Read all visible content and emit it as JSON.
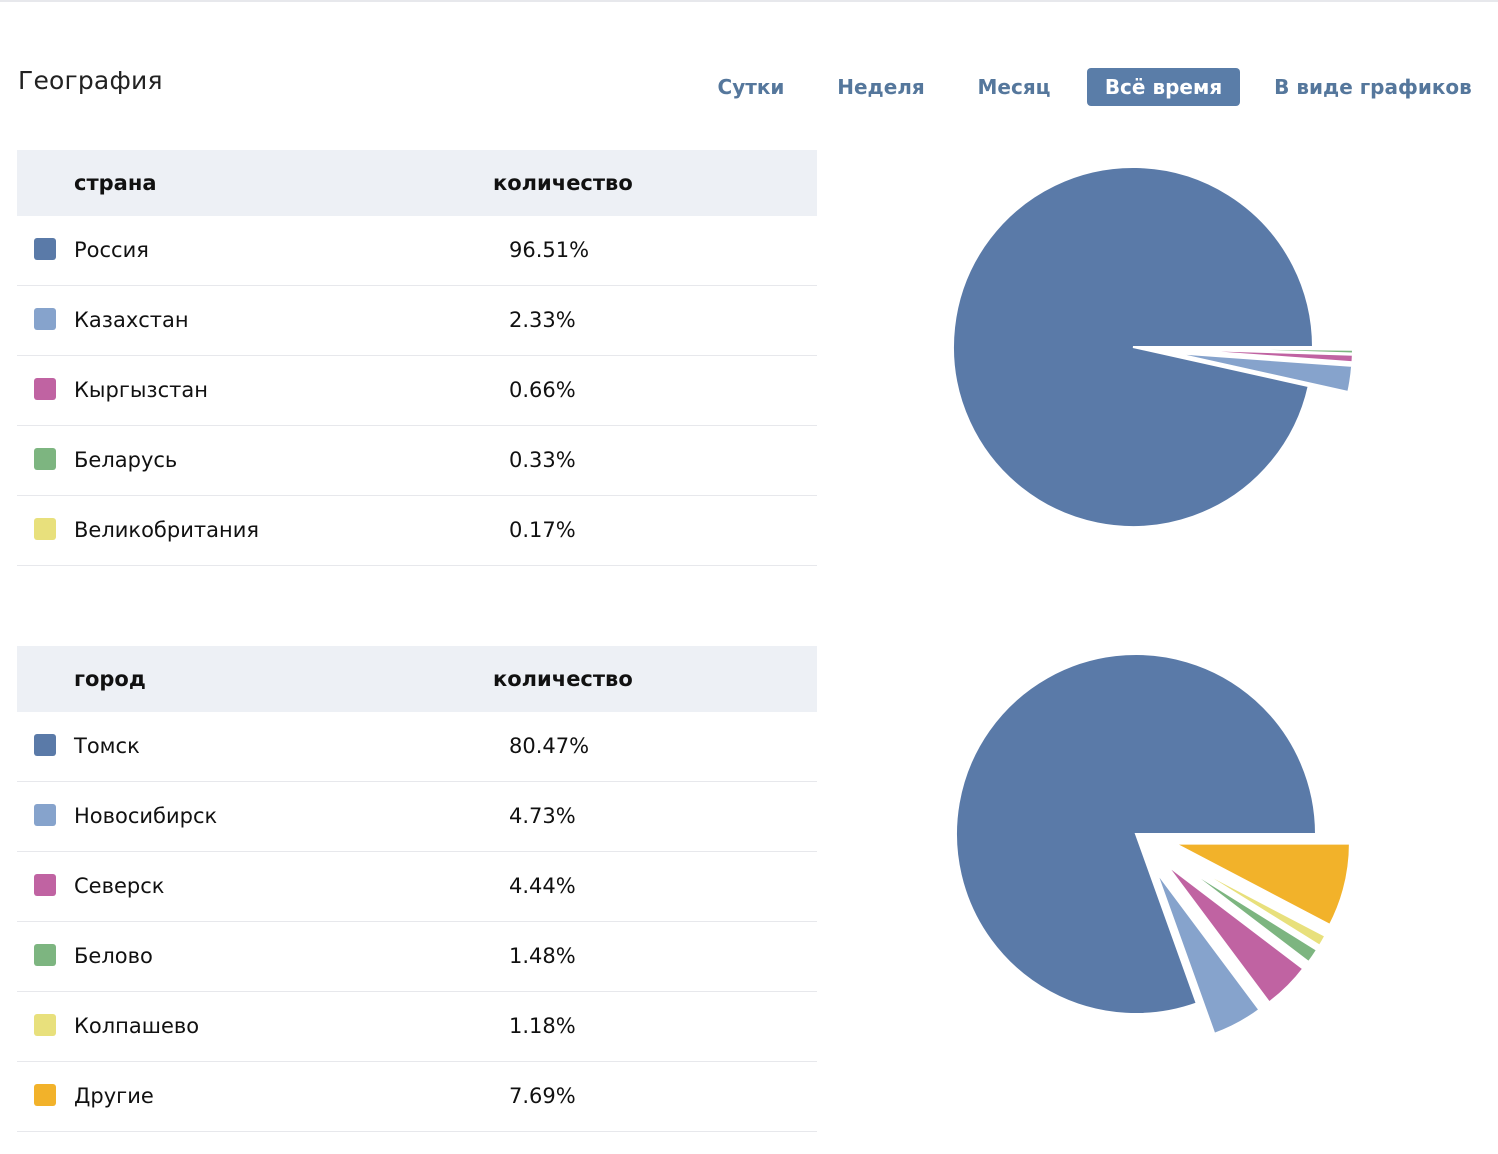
{
  "title": "География",
  "tabs": [
    {
      "label": "Сутки",
      "active": false
    },
    {
      "label": "Неделя",
      "active": false
    },
    {
      "label": "Месяц",
      "active": false
    },
    {
      "label": "Всё время",
      "active": true
    },
    {
      "label": "В виде графиков",
      "active": false
    }
  ],
  "countries": {
    "header_name": "страна",
    "header_value": "количество",
    "rows": [
      {
        "name": "Россия",
        "value": "96.51%",
        "color": "#5a7aa8"
      },
      {
        "name": "Казахстан",
        "value": "2.33%",
        "color": "#86a3cc"
      },
      {
        "name": "Кыргызстан",
        "value": "0.66%",
        "color": "#c063a2"
      },
      {
        "name": "Беларусь",
        "value": "0.33%",
        "color": "#7db580"
      },
      {
        "name": "Великобритания",
        "value": "0.17%",
        "color": "#e8e07c"
      }
    ]
  },
  "cities": {
    "header_name": "город",
    "header_value": "количество",
    "rows": [
      {
        "name": "Томск",
        "value": "80.47%",
        "color": "#5a7aa8"
      },
      {
        "name": "Новосибирск",
        "value": "4.73%",
        "color": "#86a3cc"
      },
      {
        "name": "Северск",
        "value": "4.44%",
        "color": "#c063a2"
      },
      {
        "name": "Белово",
        "value": "1.48%",
        "color": "#7db580"
      },
      {
        "name": "Колпашево",
        "value": "1.18%",
        "color": "#e8e07c"
      },
      {
        "name": "Другие",
        "value": "7.69%",
        "color": "#f2b22a"
      }
    ]
  },
  "chart_data": [
    {
      "type": "pie",
      "labels": [
        "Россия",
        "Казахстан",
        "Кыргызстан",
        "Беларусь",
        "Великобритания"
      ],
      "values": [
        96.51,
        2.33,
        0.66,
        0.33,
        0.17
      ],
      "colors": [
        "#5a7aa8",
        "#86a3cc",
        "#c063a2",
        "#7db580",
        "#e8e07c"
      ]
    },
    {
      "type": "pie",
      "labels": [
        "Томск",
        "Новосибирск",
        "Северск",
        "Белово",
        "Колпашево",
        "Другие"
      ],
      "values": [
        80.47,
        4.73,
        4.44,
        1.48,
        1.18,
        7.69
      ],
      "colors": [
        "#5a7aa8",
        "#86a3cc",
        "#c063a2",
        "#7db580",
        "#e8e07c",
        "#f2b22a"
      ]
    }
  ]
}
